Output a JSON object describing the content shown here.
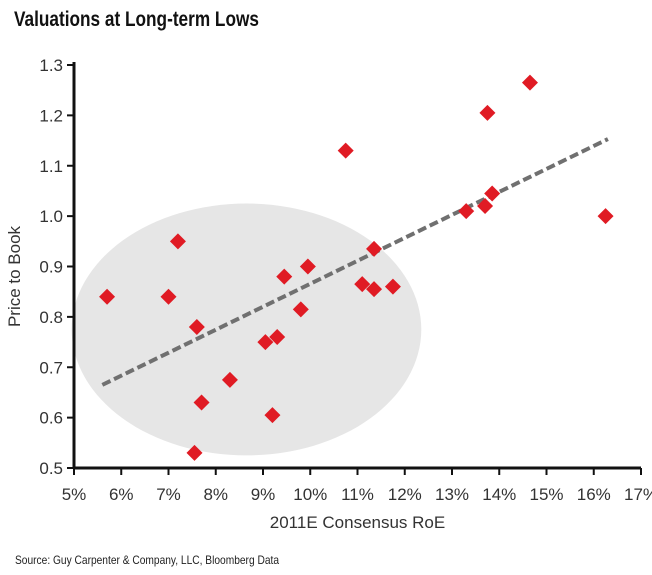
{
  "chart_data": {
    "type": "scatter",
    "title": "Valuations at Long-term Lows",
    "xlabel": "2011E Consensus RoE",
    "ylabel": "Price to Book",
    "xlim": [
      5,
      17
    ],
    "ylim": [
      0.5,
      1.3
    ],
    "x_ticks": [
      "5%",
      "6%",
      "7%",
      "8%",
      "9%",
      "10%",
      "11%",
      "12%",
      "13%",
      "14%",
      "15%",
      "16%",
      "17%"
    ],
    "y_ticks": [
      "0.5",
      "0.6",
      "0.7",
      "0.8",
      "0.9",
      "1.0",
      "1.1",
      "1.2",
      "1.3"
    ],
    "grid": false,
    "marker": "diamond",
    "marker_color": "#e01b24",
    "points": [
      {
        "x": 5.7,
        "y": 0.84
      },
      {
        "x": 7.0,
        "y": 0.84
      },
      {
        "x": 7.2,
        "y": 0.95
      },
      {
        "x": 7.6,
        "y": 0.78
      },
      {
        "x": 7.7,
        "y": 0.63
      },
      {
        "x": 7.55,
        "y": 0.53
      },
      {
        "x": 8.3,
        "y": 0.675
      },
      {
        "x": 9.05,
        "y": 0.75
      },
      {
        "x": 9.3,
        "y": 0.76
      },
      {
        "x": 9.2,
        "y": 0.605
      },
      {
        "x": 9.45,
        "y": 0.88
      },
      {
        "x": 9.8,
        "y": 0.815
      },
      {
        "x": 9.95,
        "y": 0.9
      },
      {
        "x": 10.75,
        "y": 1.13
      },
      {
        "x": 11.1,
        "y": 0.865
      },
      {
        "x": 11.35,
        "y": 0.935
      },
      {
        "x": 11.35,
        "y": 0.855
      },
      {
        "x": 11.75,
        "y": 0.86
      },
      {
        "x": 13.3,
        "y": 1.01
      },
      {
        "x": 13.7,
        "y": 1.02
      },
      {
        "x": 13.75,
        "y": 1.205
      },
      {
        "x": 13.85,
        "y": 1.045
      },
      {
        "x": 14.65,
        "y": 1.265
      },
      {
        "x": 16.25,
        "y": 1.0
      }
    ],
    "trendline": {
      "x": [
        5.6,
        16.3
      ],
      "y": [
        0.665,
        1.153
      ],
      "style": "dashed",
      "color": "#707070"
    },
    "highlight_ellipse": {
      "cx": 8.65,
      "cy": 0.775,
      "rx": 3.7,
      "ry": 0.25,
      "color": "#e6e6e6"
    }
  },
  "source": "Source: Guy Carpenter & Company, LLC, Bloomberg Data"
}
